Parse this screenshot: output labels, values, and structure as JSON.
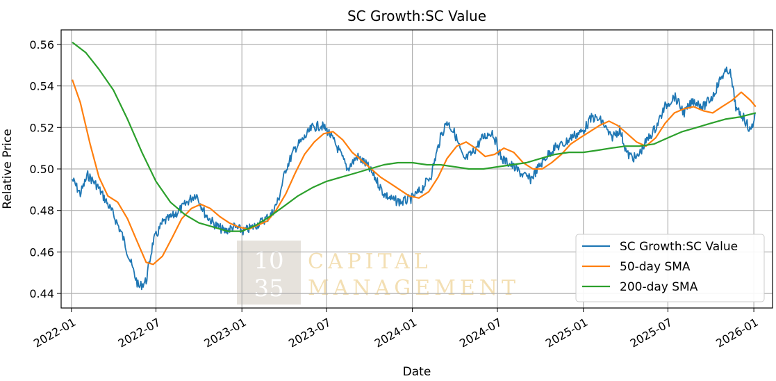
{
  "chart_data": {
    "type": "line",
    "title": "SC Growth:SC Value",
    "xlabel": "Date",
    "ylabel": "Relative Price",
    "xlim": [
      "2021-12-10",
      "2026-02-10"
    ],
    "ylim": [
      0.433,
      0.567
    ],
    "x_ticks": [
      "2022-01",
      "2022-07",
      "2023-01",
      "2023-07",
      "2024-01",
      "2024-07",
      "2025-01",
      "2025-07",
      "2026-01"
    ],
    "y_ticks": [
      "0.44",
      "0.46",
      "0.48",
      "0.50",
      "0.52",
      "0.54",
      "0.56"
    ],
    "y_tick_values": [
      0.44,
      0.46,
      0.48,
      0.5,
      0.52,
      0.54,
      0.56
    ],
    "grid": true,
    "legend_position": "lower-right",
    "colors": {
      "series1": "#1f77b4",
      "series2": "#ff7f0e",
      "series3": "#2ca02c"
    },
    "series": [
      {
        "name": "SC Growth:SC Value",
        "noisy": true,
        "x": [
          "2022-01-03",
          "2022-01-20",
          "2022-02-05",
          "2022-02-25",
          "2022-03-15",
          "2022-04-01",
          "2022-04-20",
          "2022-05-12",
          "2022-05-25",
          "2022-06-10",
          "2022-06-25",
          "2022-07-15",
          "2022-08-05",
          "2022-08-25",
          "2022-09-10",
          "2022-09-25",
          "2022-10-15",
          "2022-11-05",
          "2022-11-25",
          "2022-12-15",
          "2023-01-05",
          "2023-01-25",
          "2023-02-15",
          "2023-03-05",
          "2023-03-20",
          "2023-04-05",
          "2023-04-25",
          "2023-05-15",
          "2023-06-01",
          "2023-06-20",
          "2023-07-05",
          "2023-07-25",
          "2023-08-15",
          "2023-09-05",
          "2023-09-25",
          "2023-10-15",
          "2023-11-01",
          "2023-11-20",
          "2023-12-10",
          "2024-01-01",
          "2024-01-20",
          "2024-02-10",
          "2024-03-01",
          "2024-03-15",
          "2024-04-01",
          "2024-04-20",
          "2024-05-10",
          "2024-05-30",
          "2024-06-20",
          "2024-07-10",
          "2024-07-30",
          "2024-08-10",
          "2024-08-25",
          "2024-09-10",
          "2024-09-25",
          "2024-10-10",
          "2024-10-30",
          "2024-11-20",
          "2024-12-10",
          "2024-12-30",
          "2025-01-20",
          "2025-02-10",
          "2025-03-01",
          "2025-03-20",
          "2025-04-05",
          "2025-04-25",
          "2025-05-15",
          "2025-06-05",
          "2025-06-25",
          "2025-07-15",
          "2025-08-05",
          "2025-08-25",
          "2025-09-15",
          "2025-10-05",
          "2025-10-25",
          "2025-11-10",
          "2025-11-25",
          "2025-12-10",
          "2025-12-25",
          "2026-01-05"
        ],
        "y": [
          0.495,
          0.488,
          0.497,
          0.492,
          0.485,
          0.478,
          0.468,
          0.452,
          0.443,
          0.446,
          0.465,
          0.474,
          0.477,
          0.481,
          0.485,
          0.488,
          0.478,
          0.473,
          0.47,
          0.472,
          0.47,
          0.472,
          0.475,
          0.478,
          0.485,
          0.5,
          0.51,
          0.515,
          0.52,
          0.521,
          0.518,
          0.51,
          0.5,
          0.506,
          0.502,
          0.495,
          0.488,
          0.485,
          0.484,
          0.486,
          0.49,
          0.497,
          0.515,
          0.523,
          0.517,
          0.504,
          0.508,
          0.515,
          0.518,
          0.505,
          0.502,
          0.5,
          0.497,
          0.495,
          0.5,
          0.505,
          0.51,
          0.512,
          0.516,
          0.518,
          0.525,
          0.523,
          0.515,
          0.519,
          0.507,
          0.505,
          0.513,
          0.52,
          0.53,
          0.535,
          0.527,
          0.533,
          0.53,
          0.535,
          0.545,
          0.548,
          0.528,
          0.525,
          0.518,
          0.527
        ],
        "values_y": null
      },
      {
        "name": "50-day SMA",
        "noisy": false,
        "x": [
          "2022-01-03",
          "2022-01-20",
          "2022-02-10",
          "2022-03-01",
          "2022-03-20",
          "2022-04-10",
          "2022-05-01",
          "2022-05-20",
          "2022-06-10",
          "2022-06-25",
          "2022-07-15",
          "2022-08-05",
          "2022-08-25",
          "2022-09-15",
          "2022-10-05",
          "2022-10-25",
          "2022-11-15",
          "2022-12-05",
          "2022-12-25",
          "2023-01-15",
          "2023-02-05",
          "2023-02-25",
          "2023-03-15",
          "2023-04-05",
          "2023-04-25",
          "2023-05-15",
          "2023-06-05",
          "2023-06-25",
          "2023-07-15",
          "2023-08-05",
          "2023-08-25",
          "2023-09-15",
          "2023-10-05",
          "2023-10-25",
          "2023-11-15",
          "2023-12-05",
          "2023-12-25",
          "2024-01-15",
          "2024-02-05",
          "2024-02-25",
          "2024-03-15",
          "2024-04-05",
          "2024-04-25",
          "2024-05-15",
          "2024-06-05",
          "2024-06-25",
          "2024-07-15",
          "2024-08-05",
          "2024-08-25",
          "2024-09-15",
          "2024-10-05",
          "2024-10-25",
          "2024-11-15",
          "2024-12-05",
          "2024-12-25",
          "2025-01-15",
          "2025-02-05",
          "2025-02-25",
          "2025-03-15",
          "2025-04-05",
          "2025-04-25",
          "2025-05-15",
          "2025-06-05",
          "2025-06-25",
          "2025-07-15",
          "2025-08-05",
          "2025-08-25",
          "2025-09-15",
          "2025-10-05",
          "2025-10-25",
          "2025-11-15",
          "2025-12-05",
          "2025-12-25",
          "2026-01-05"
        ],
        "y": [
          0.543,
          0.532,
          0.512,
          0.496,
          0.487,
          0.484,
          0.476,
          0.466,
          0.455,
          0.454,
          0.458,
          0.467,
          0.476,
          0.481,
          0.483,
          0.481,
          0.477,
          0.474,
          0.472,
          0.471,
          0.473,
          0.475,
          0.48,
          0.488,
          0.498,
          0.507,
          0.513,
          0.517,
          0.518,
          0.514,
          0.508,
          0.504,
          0.5,
          0.496,
          0.493,
          0.49,
          0.487,
          0.486,
          0.489,
          0.496,
          0.505,
          0.511,
          0.513,
          0.51,
          0.506,
          0.507,
          0.51,
          0.508,
          0.503,
          0.5,
          0.5,
          0.503,
          0.507,
          0.512,
          0.515,
          0.518,
          0.521,
          0.523,
          0.521,
          0.517,
          0.513,
          0.511,
          0.515,
          0.522,
          0.527,
          0.529,
          0.53,
          0.528,
          0.527,
          0.53,
          0.533,
          0.537,
          0.533,
          0.53
        ],
        "values_y": null
      },
      {
        "name": "200-day SMA",
        "noisy": false,
        "x": [
          "2022-01-03",
          "2022-02-01",
          "2022-03-01",
          "2022-04-01",
          "2022-05-01",
          "2022-06-01",
          "2022-07-01",
          "2022-08-01",
          "2022-09-01",
          "2022-10-01",
          "2022-11-01",
          "2022-12-01",
          "2023-01-01",
          "2023-02-01",
          "2023-03-01",
          "2023-04-01",
          "2023-05-01",
          "2023-06-01",
          "2023-07-01",
          "2023-08-01",
          "2023-09-01",
          "2023-10-01",
          "2023-11-01",
          "2023-12-01",
          "2024-01-01",
          "2024-02-01",
          "2024-03-01",
          "2024-04-01",
          "2024-05-01",
          "2024-06-01",
          "2024-07-01",
          "2024-08-01",
          "2024-09-01",
          "2024-10-01",
          "2024-11-01",
          "2024-12-01",
          "2025-01-01",
          "2025-02-01",
          "2025-03-01",
          "2025-04-01",
          "2025-05-01",
          "2025-06-01",
          "2025-07-01",
          "2025-08-01",
          "2025-09-01",
          "2025-10-01",
          "2025-11-01",
          "2025-12-01",
          "2026-01-05"
        ],
        "y": [
          0.561,
          0.556,
          0.548,
          0.538,
          0.524,
          0.508,
          0.494,
          0.484,
          0.478,
          0.474,
          0.472,
          0.47,
          0.47,
          0.473,
          0.477,
          0.482,
          0.487,
          0.491,
          0.494,
          0.496,
          0.498,
          0.5,
          0.502,
          0.503,
          0.503,
          0.502,
          0.502,
          0.501,
          0.5,
          0.5,
          0.501,
          0.502,
          0.503,
          0.505,
          0.507,
          0.508,
          0.508,
          0.509,
          0.51,
          0.511,
          0.511,
          0.512,
          0.515,
          0.518,
          0.52,
          0.522,
          0.524,
          0.525,
          0.527
        ],
        "values_y": null
      }
    ]
  },
  "watermark": {
    "num_top": "10",
    "num_bottom": "35",
    "line1": "CAPITAL",
    "line2": "MANAGEMENT"
  }
}
